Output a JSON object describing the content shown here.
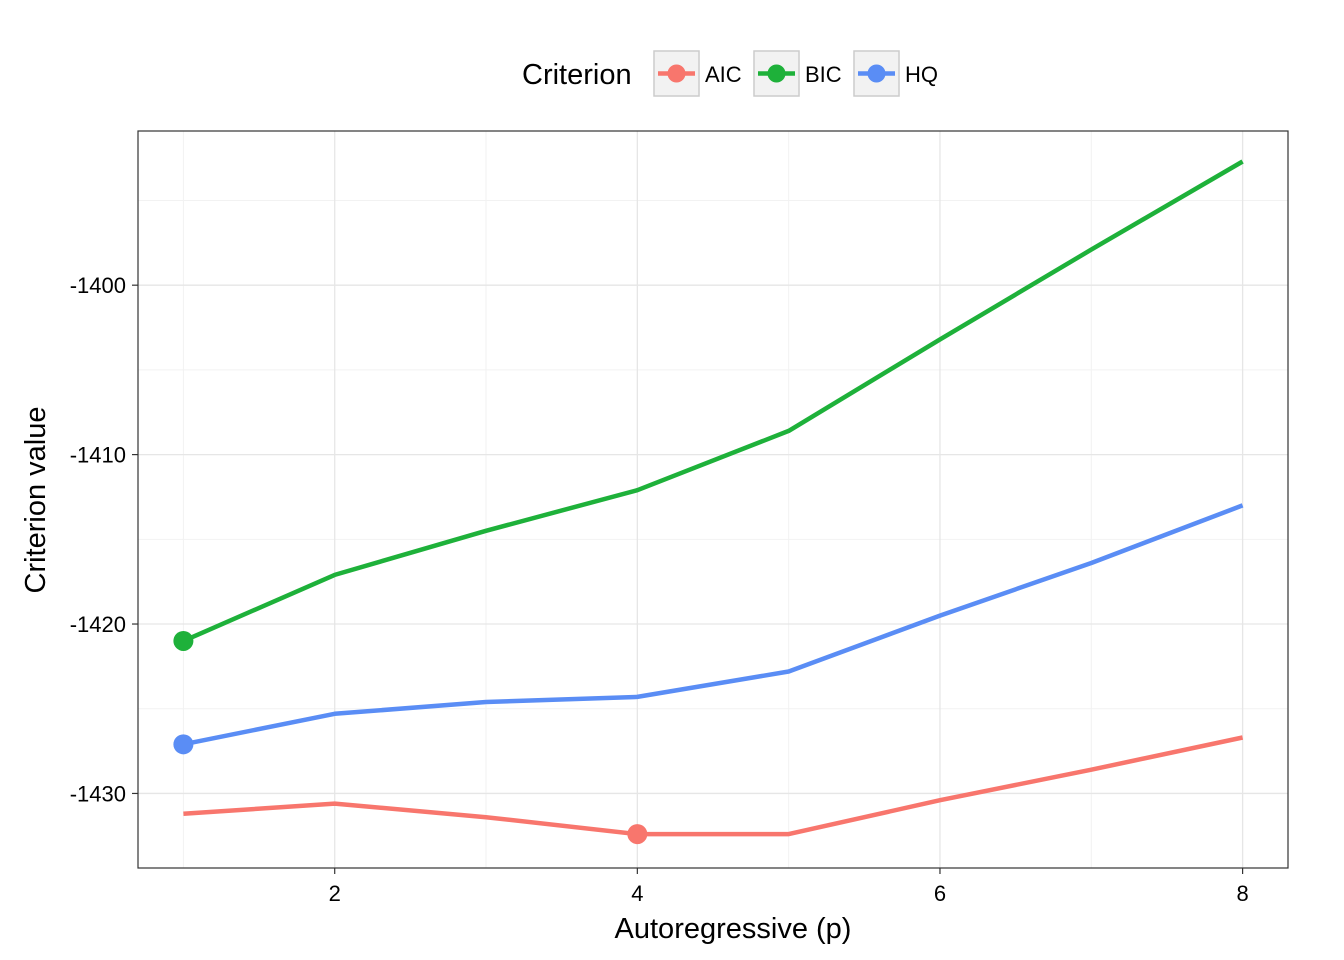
{
  "chart_data": {
    "type": "line",
    "xlabel": "Autoregressive (p)",
    "ylabel": "Criterion value",
    "legend_title": "Criterion",
    "legend_position": "top",
    "grid": true,
    "xlim": [
      0.7,
      8.3
    ],
    "ylim": [
      -1434.4,
      -1390.9
    ],
    "x_ticks": [
      2,
      4,
      6,
      8
    ],
    "x_tick_labels": [
      "2",
      "4",
      "6",
      "8"
    ],
    "y_ticks": [
      -1430,
      -1420,
      -1410,
      -1400
    ],
    "y_tick_labels": [
      "-1430",
      "-1420",
      "-1410",
      "-1400"
    ],
    "x": [
      1,
      2,
      3,
      4,
      5,
      6,
      7,
      8
    ],
    "series": [
      {
        "name": "AIC",
        "color": "#F8766D",
        "values": [
          -1431.2,
          -1430.6,
          -1431.4,
          -1432.4,
          -1432.4,
          -1430.4,
          -1428.6,
          -1426.7
        ],
        "highlight_index": 3
      },
      {
        "name": "BIC",
        "color": "#1EB13A",
        "values": [
          -1421.0,
          -1417.1,
          -1414.5,
          -1412.1,
          -1408.6,
          -1403.2,
          -1397.9,
          -1392.7
        ],
        "highlight_index": 0
      },
      {
        "name": "HQ",
        "color": "#5A8DF5",
        "values": [
          -1427.1,
          -1425.3,
          -1424.6,
          -1424.3,
          -1422.8,
          -1419.5,
          -1416.4,
          -1413.0
        ],
        "highlight_index": 0
      }
    ]
  }
}
